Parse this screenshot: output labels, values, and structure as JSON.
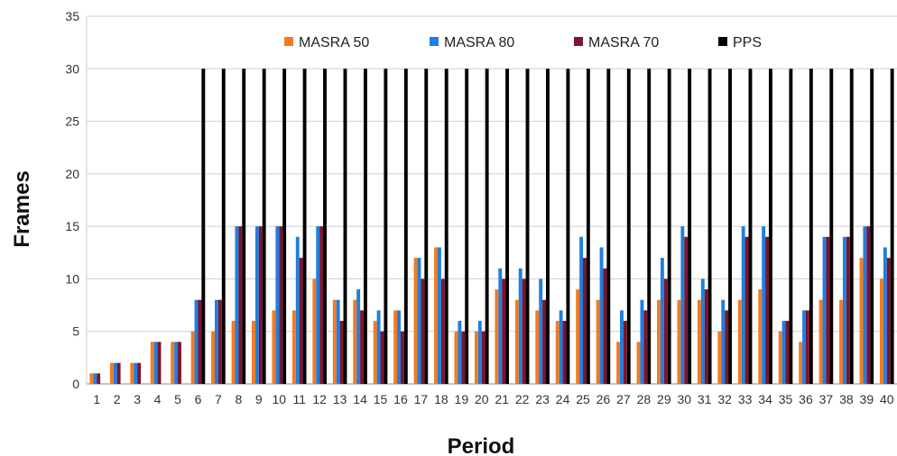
{
  "chart_data": {
    "type": "bar",
    "title": "",
    "xlabel": "Period",
    "ylabel": "Frames",
    "ylim": [
      0,
      35
    ],
    "yticks": [
      0,
      5,
      10,
      15,
      20,
      25,
      30,
      35
    ],
    "grid": "horizontal",
    "legend_position": "top",
    "categories": [
      "1",
      "2",
      "3",
      "4",
      "5",
      "6",
      "7",
      "8",
      "9",
      "10",
      "11",
      "12",
      "13",
      "14",
      "15",
      "16",
      "17",
      "18",
      "19",
      "20",
      "21",
      "22",
      "23",
      "24",
      "25",
      "26",
      "27",
      "28",
      "29",
      "30",
      "31",
      "32",
      "33",
      "34",
      "35",
      "36",
      "37",
      "38",
      "39",
      "40"
    ],
    "series": [
      {
        "name": "MASRA 50",
        "color": "#f47b20",
        "values": [
          1,
          2,
          2,
          4,
          4,
          5,
          5,
          6,
          6,
          7,
          7,
          10,
          8,
          8,
          6,
          7,
          12,
          13,
          5,
          5,
          9,
          8,
          7,
          6,
          9,
          8,
          4,
          4,
          8,
          8,
          8,
          5,
          8,
          9,
          5,
          4,
          8,
          8,
          12,
          10
        ]
      },
      {
        "name": "MASRA 80",
        "color": "#1f7fe0",
        "values": [
          1,
          2,
          2,
          4,
          4,
          8,
          8,
          15,
          15,
          15,
          14,
          15,
          8,
          9,
          7,
          7,
          12,
          13,
          6,
          6,
          11,
          11,
          10,
          7,
          14,
          13,
          7,
          8,
          12,
          15,
          10,
          8,
          15,
          15,
          6,
          7,
          14,
          14,
          15,
          13
        ]
      },
      {
        "name": "MASRA 70",
        "color": "#7b1530",
        "values": [
          1,
          2,
          2,
          4,
          4,
          8,
          8,
          15,
          15,
          15,
          12,
          15,
          6,
          7,
          5,
          5,
          10,
          10,
          5,
          5,
          10,
          10,
          8,
          6,
          12,
          11,
          6,
          7,
          10,
          14,
          9,
          7,
          14,
          14,
          6,
          7,
          14,
          14,
          15,
          12
        ]
      },
      {
        "name": "PPS",
        "color": "#000000",
        "values": [
          null,
          null,
          null,
          null,
          null,
          30,
          30,
          30,
          30,
          30,
          30,
          30,
          30,
          30,
          30,
          30,
          30,
          30,
          30,
          30,
          30,
          30,
          30,
          30,
          30,
          30,
          30,
          30,
          30,
          30,
          30,
          30,
          30,
          30,
          30,
          30,
          30,
          30,
          30,
          30
        ]
      }
    ]
  }
}
